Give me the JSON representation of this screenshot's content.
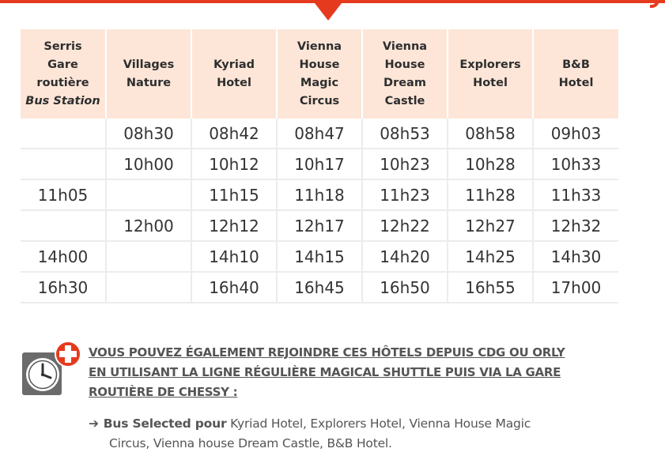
{
  "accent_color": "#e63a1e",
  "header_bg_color": "#fde6d8",
  "table": {
    "headers": [
      {
        "lines": [
          "Serris",
          "Gare",
          "routière"
        ],
        "italic": "Bus Station"
      },
      {
        "lines": [
          "Villages",
          "Nature"
        ]
      },
      {
        "lines": [
          "Kyriad",
          "Hotel"
        ]
      },
      {
        "lines": [
          "Vienna",
          "House Magic",
          "Circus"
        ]
      },
      {
        "lines": [
          "Vienna",
          "House Dream",
          "Castle"
        ]
      },
      {
        "lines": [
          "Explorers",
          "Hotel"
        ]
      },
      {
        "lines": [
          "B&B",
          "Hotel"
        ]
      }
    ],
    "rows": [
      [
        "",
        "08h30",
        "08h42",
        "08h47",
        "08h53",
        "08h58",
        "09h03"
      ],
      [
        "",
        "10h00",
        "10h12",
        "10h17",
        "10h23",
        "10h28",
        "10h33"
      ],
      [
        "11h05",
        "",
        "11h15",
        "11h18",
        "11h23",
        "11h28",
        "11h33"
      ],
      [
        "",
        "12h00",
        "12h12",
        "12h17",
        "12h22",
        "12h27",
        "12h32"
      ],
      [
        "14h00",
        "",
        "14h10",
        "14h15",
        "14h20",
        "14h25",
        "14h30"
      ],
      [
        "16h30",
        "",
        "16h40",
        "16h45",
        "16h50",
        "16h55",
        "17h00"
      ]
    ]
  },
  "note": {
    "icon": "clock-plus-icon",
    "lines": [
      "VOUS POUVEZ ÉGALEMENT REJOINDRE CES HÔTELS DEPUIS CDG OU ORLY",
      "EN UTILISANT LA LIGNE RÉGULIÈRE MAGICAL SHUTTLE PUIS VIA LA GARE",
      "ROUTIÈRE DE CHESSY :"
    ],
    "bus": {
      "arrow": "➔",
      "bold": "Bus Selected pour",
      "text_line1": " Kyriad Hotel, Explorers Hotel, Vienna House Magic",
      "text_line2": "Circus, Vienna house Dream Castle, B&B Hotel."
    }
  }
}
